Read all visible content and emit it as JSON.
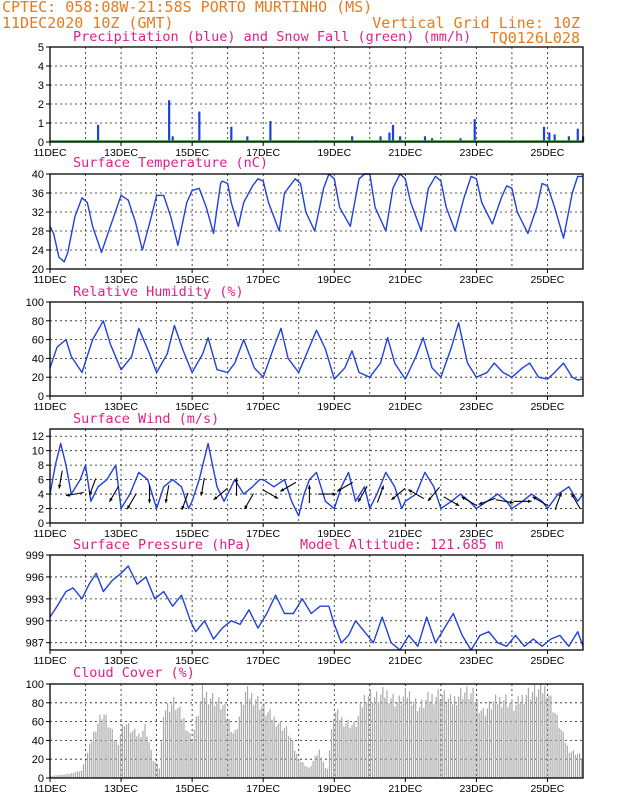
{
  "header": {
    "line1": "CPTEC:  058:08W-21:58S  PORTO MURTINHO (MS)",
    "line2": "11DEC2020 10Z (GMT)",
    "grid_note": "Vertical Grid Line: 10Z",
    "code": "TQ0126L028"
  },
  "x_axis": {
    "start_day": 11,
    "end_day": 26,
    "tick_labels": [
      "11DEC",
      "13DEC",
      "15DEC",
      "17DEC",
      "19DEC",
      "21DEC",
      "23DEC",
      "25DEC"
    ],
    "gridline_days": [
      11,
      12,
      13,
      14,
      15,
      16,
      17,
      18,
      19,
      20,
      21,
      22,
      23,
      24,
      25,
      26
    ]
  },
  "chart_data": [
    {
      "id": "precip",
      "type": "bar",
      "title": "Precipitation (blue) and Snow Fall (green) (mm/h)",
      "ylim": [
        0,
        5
      ],
      "yticks": [
        0,
        1,
        2,
        3,
        4,
        5
      ],
      "colors": {
        "rain": "#1f3fe0",
        "snow": "#2e9a2e"
      },
      "series": [
        {
          "name": "Precipitation",
          "x": [
            12.35,
            14.35,
            14.45,
            15.2,
            16.1,
            16.55,
            17.2,
            18.5,
            19.5,
            20.3,
            20.55,
            20.65,
            20.85,
            21.55,
            21.75,
            22.55,
            22.95,
            24.9,
            25.05,
            25.2,
            25.6,
            25.85,
            26.0
          ],
          "values": [
            0.9,
            2.2,
            0.3,
            1.6,
            0.8,
            0.3,
            1.1,
            0.1,
            0.3,
            0.3,
            0.5,
            0.9,
            0.3,
            0.3,
            0.2,
            0.2,
            1.2,
            0.8,
            0.5,
            0.4,
            0.3,
            0.7,
            0.3
          ]
        },
        {
          "name": "Snow Fall",
          "x": [],
          "values": []
        }
      ]
    },
    {
      "id": "temperature",
      "type": "line",
      "title": "Surface Temperature (nC)",
      "ylim": [
        20,
        40
      ],
      "yticks": [
        20,
        24,
        28,
        32,
        36,
        40
      ],
      "color": "#2040e0",
      "x": [
        11.0,
        11.1,
        11.25,
        11.4,
        11.5,
        11.7,
        11.9,
        12.05,
        12.2,
        12.45,
        12.7,
        13.0,
        13.2,
        13.4,
        13.6,
        13.85,
        14.0,
        14.2,
        14.4,
        14.6,
        14.85,
        15.0,
        15.2,
        15.4,
        15.6,
        15.8,
        15.85,
        16.0,
        16.1,
        16.3,
        16.45,
        16.7,
        16.85,
        17.0,
        17.15,
        17.45,
        17.6,
        17.9,
        18.05,
        18.2,
        18.45,
        18.7,
        18.85,
        19.0,
        19.15,
        19.45,
        19.7,
        19.85,
        20.0,
        20.15,
        20.45,
        20.65,
        20.85,
        21.0,
        21.15,
        21.45,
        21.65,
        21.85,
        22.0,
        22.15,
        22.4,
        22.65,
        22.85,
        23.0,
        23.15,
        23.45,
        23.7,
        23.85,
        24.0,
        24.15,
        24.45,
        24.7,
        24.85,
        25.0,
        25.2,
        25.45,
        25.7,
        25.85,
        26.0
      ],
      "values": [
        29,
        27.5,
        22.5,
        21.5,
        23.5,
        31,
        35,
        34,
        29,
        23.5,
        29,
        35.5,
        34.5,
        30,
        24,
        31,
        35.5,
        35.5,
        31,
        25,
        34,
        36.5,
        37,
        33,
        27.5,
        38,
        38.5,
        38,
        34,
        29,
        34,
        37.5,
        39,
        38.5,
        34,
        28,
        36,
        39,
        38,
        32,
        28,
        37,
        40,
        39,
        33,
        29,
        39,
        40,
        40,
        33,
        28,
        37,
        40,
        39,
        34,
        28,
        37,
        39.5,
        38.5,
        33,
        28,
        35,
        39.5,
        39,
        34,
        29.5,
        35,
        37.5,
        37,
        32,
        27.5,
        33,
        38,
        37.5,
        33,
        26.5,
        36,
        39.5,
        39.5
      ]
    },
    {
      "id": "humidity",
      "type": "line",
      "title": "Relative Humidity (%)",
      "ylim": [
        0,
        100
      ],
      "yticks": [
        0,
        20,
        40,
        60,
        80,
        100
      ],
      "color": "#2040e0",
      "x": [
        11.0,
        11.2,
        11.45,
        11.6,
        11.9,
        12.2,
        12.5,
        12.7,
        13.0,
        13.3,
        13.5,
        13.8,
        14.0,
        14.3,
        14.5,
        14.75,
        15.0,
        15.3,
        15.45,
        15.7,
        16.0,
        16.2,
        16.45,
        16.75,
        17.0,
        17.3,
        17.5,
        17.7,
        18.0,
        18.3,
        18.5,
        18.75,
        19.0,
        19.3,
        19.5,
        19.7,
        20.0,
        20.3,
        20.5,
        20.7,
        21.0,
        21.3,
        21.5,
        21.75,
        22.0,
        22.3,
        22.5,
        22.75,
        23.0,
        23.3,
        23.5,
        23.75,
        24.0,
        24.3,
        24.5,
        24.75,
        25.0,
        25.2,
        25.45,
        25.7,
        25.85,
        26.0
      ],
      "values": [
        30,
        52,
        60,
        42,
        25,
        60,
        80,
        55,
        28,
        42,
        72,
        45,
        25,
        45,
        75,
        48,
        25,
        45,
        62,
        28,
        25,
        35,
        60,
        30,
        20,
        52,
        72,
        40,
        25,
        52,
        70,
        50,
        18,
        30,
        48,
        25,
        20,
        35,
        62,
        35,
        18,
        42,
        62,
        30,
        20,
        52,
        78,
        35,
        20,
        25,
        35,
        25,
        20,
        30,
        35,
        20,
        18,
        25,
        35,
        20,
        17,
        18
      ]
    },
    {
      "id": "wind",
      "type": "line",
      "title": "Surface Wind (m/s)",
      "ylim": [
        0,
        13
      ],
      "yticks": [
        0,
        2,
        4,
        6,
        8,
        10,
        12
      ],
      "color": "#2040e0",
      "x": [
        11.0,
        11.15,
        11.3,
        11.45,
        11.6,
        11.85,
        12.0,
        12.15,
        12.35,
        12.6,
        12.85,
        13.0,
        13.25,
        13.5,
        13.75,
        14.0,
        14.2,
        14.45,
        14.7,
        14.9,
        15.0,
        15.2,
        15.45,
        15.7,
        15.9,
        16.0,
        16.2,
        16.45,
        16.7,
        16.9,
        17.0,
        17.3,
        17.6,
        17.8,
        18.0,
        18.15,
        18.3,
        18.5,
        18.75,
        19.0,
        19.2,
        19.4,
        19.6,
        19.85,
        20.0,
        20.2,
        20.45,
        20.7,
        20.9,
        21.0,
        21.3,
        21.55,
        21.8,
        22.0,
        22.3,
        22.55,
        22.8,
        23.0,
        23.3,
        23.6,
        23.85,
        24.0,
        24.3,
        24.55,
        24.85,
        25.0,
        25.3,
        25.6,
        25.85,
        26.0
      ],
      "values": [
        4,
        8,
        11,
        8,
        4,
        6,
        8,
        3,
        5,
        6,
        8,
        2,
        4,
        7,
        6,
        2,
        5,
        6,
        5,
        2,
        3,
        6,
        11,
        5,
        3,
        4,
        6,
        4,
        5,
        6,
        6,
        5,
        6,
        3,
        1,
        4,
        6,
        7,
        3,
        2,
        5,
        7,
        3,
        5,
        2,
        4,
        7,
        5,
        2,
        3,
        4,
        7,
        5,
        2,
        3,
        4,
        3,
        2,
        3,
        4,
        3,
        2,
        3,
        4,
        3,
        2,
        4,
        5,
        3,
        4
      ],
      "arrows": [
        {
          "x": 11.3,
          "dir_deg": 190,
          "speed": 6
        },
        {
          "x": 11.7,
          "dir_deg": 260,
          "speed": 4
        },
        {
          "x": 12.2,
          "dir_deg": 200,
          "speed": 5
        },
        {
          "x": 12.8,
          "dir_deg": 210,
          "speed": 4
        },
        {
          "x": 13.3,
          "dir_deg": 210,
          "speed": 3
        },
        {
          "x": 13.8,
          "dir_deg": 180,
          "speed": 4
        },
        {
          "x": 14.3,
          "dir_deg": 190,
          "speed": 4
        },
        {
          "x": 14.8,
          "dir_deg": 200,
          "speed": 3
        },
        {
          "x": 15.3,
          "dir_deg": 190,
          "speed": 5
        },
        {
          "x": 15.8,
          "dir_deg": 230,
          "speed": 4
        },
        {
          "x": 16.25,
          "dir_deg": 0,
          "speed": 5
        },
        {
          "x": 16.6,
          "dir_deg": 210,
          "speed": 3
        },
        {
          "x": 17.2,
          "dir_deg": 120,
          "speed": 4
        },
        {
          "x": 17.7,
          "dir_deg": 240,
          "speed": 5
        },
        {
          "x": 18.3,
          "dir_deg": 0,
          "speed": 4
        },
        {
          "x": 18.8,
          "dir_deg": 90,
          "speed": 4
        },
        {
          "x": 19.3,
          "dir_deg": 240,
          "speed": 5
        },
        {
          "x": 19.8,
          "dir_deg": 210,
          "speed": 4
        },
        {
          "x": 20.3,
          "dir_deg": 20,
          "speed": 4
        },
        {
          "x": 20.8,
          "dir_deg": 230,
          "speed": 4
        },
        {
          "x": 21.3,
          "dir_deg": 300,
          "speed": 4
        },
        {
          "x": 21.8,
          "dir_deg": 220,
          "speed": 4
        },
        {
          "x": 22.3,
          "dir_deg": 120,
          "speed": 3
        },
        {
          "x": 22.8,
          "dir_deg": 300,
          "speed": 3
        },
        {
          "x": 23.3,
          "dir_deg": 250,
          "speed": 3
        },
        {
          "x": 23.8,
          "dir_deg": 100,
          "speed": 3
        },
        {
          "x": 24.3,
          "dir_deg": 90,
          "speed": 3
        },
        {
          "x": 24.8,
          "dir_deg": 300,
          "speed": 3
        },
        {
          "x": 25.3,
          "dir_deg": 20,
          "speed": 3
        },
        {
          "x": 25.8,
          "dir_deg": 330,
          "speed": 3
        }
      ]
    },
    {
      "id": "pressure",
      "type": "line",
      "title": "Surface Pressure (hPa)",
      "annotation": "Model Altitude: 121.685 m",
      "ylim": [
        986,
        999
      ],
      "yticks": [
        987,
        990,
        993,
        996,
        999
      ],
      "color": "#2040e0",
      "x": [
        11.0,
        11.2,
        11.45,
        11.65,
        11.9,
        12.1,
        12.3,
        12.5,
        12.75,
        13.0,
        13.2,
        13.45,
        13.7,
        13.95,
        14.2,
        14.45,
        14.7,
        14.95,
        15.1,
        15.35,
        15.6,
        15.85,
        16.1,
        16.35,
        16.6,
        16.85,
        17.1,
        17.35,
        17.6,
        17.85,
        18.1,
        18.35,
        18.6,
        18.85,
        19.0,
        19.2,
        19.4,
        19.6,
        19.85,
        20.1,
        20.35,
        20.6,
        20.85,
        21.1,
        21.35,
        21.6,
        21.85,
        22.1,
        22.35,
        22.6,
        22.85,
        23.1,
        23.35,
        23.6,
        23.85,
        24.1,
        24.35,
        24.6,
        24.85,
        25.1,
        25.35,
        25.6,
        25.85,
        26.0
      ],
      "values": [
        990.5,
        992,
        994,
        994.5,
        993,
        995,
        996.5,
        994,
        995.5,
        996.5,
        997.5,
        995,
        996,
        993,
        994,
        992,
        993.5,
        990,
        988.5,
        990,
        987.5,
        989,
        990,
        989.5,
        991.5,
        989,
        991,
        993.5,
        991,
        991,
        993,
        991,
        992,
        992,
        989.5,
        987,
        988,
        990,
        988.5,
        987,
        990.5,
        987,
        986,
        988,
        986.5,
        990.5,
        987,
        989,
        991,
        988,
        986,
        988,
        988.5,
        987,
        986.5,
        988,
        986.5,
        987.5,
        986.5,
        987.5,
        988,
        986.5,
        988.5,
        986.5
      ]
    },
    {
      "id": "cloud",
      "type": "area",
      "title": "Cloud Cover (%)",
      "ylim": [
        0,
        100
      ],
      "yticks": [
        0,
        20,
        40,
        60,
        80,
        100
      ],
      "color": "#a9a9a9",
      "x": [
        11.0,
        11.2,
        11.5,
        11.9,
        12.1,
        12.3,
        12.5,
        12.9,
        13.1,
        13.3,
        13.5,
        13.7,
        13.9,
        14.1,
        14.2,
        14.5,
        14.8,
        15.0,
        15.3,
        15.6,
        15.9,
        16.2,
        16.5,
        16.8,
        17.1,
        17.4,
        17.7,
        18.0,
        18.3,
        18.6,
        18.8,
        19.0,
        19.3,
        19.6,
        19.9,
        20.2,
        20.5,
        20.8,
        21.1,
        21.4,
        21.7,
        22.0,
        22.3,
        22.6,
        22.9,
        23.2,
        23.5,
        23.8,
        24.1,
        24.4,
        24.7,
        25.0,
        25.3,
        25.6,
        25.9,
        26.0
      ],
      "values": [
        2,
        3,
        4,
        8,
        30,
        55,
        70,
        35,
        60,
        50,
        45,
        55,
        20,
        10,
        72,
        80,
        60,
        40,
        90,
        85,
        75,
        45,
        90,
        85,
        70,
        60,
        50,
        20,
        10,
        30,
        5,
        70,
        60,
        55,
        90,
        85,
        90,
        80,
        90,
        75,
        85,
        90,
        80,
        92,
        88,
        70,
        80,
        85,
        75,
        90,
        92,
        95,
        60,
        30,
        25,
        20
      ]
    }
  ]
}
